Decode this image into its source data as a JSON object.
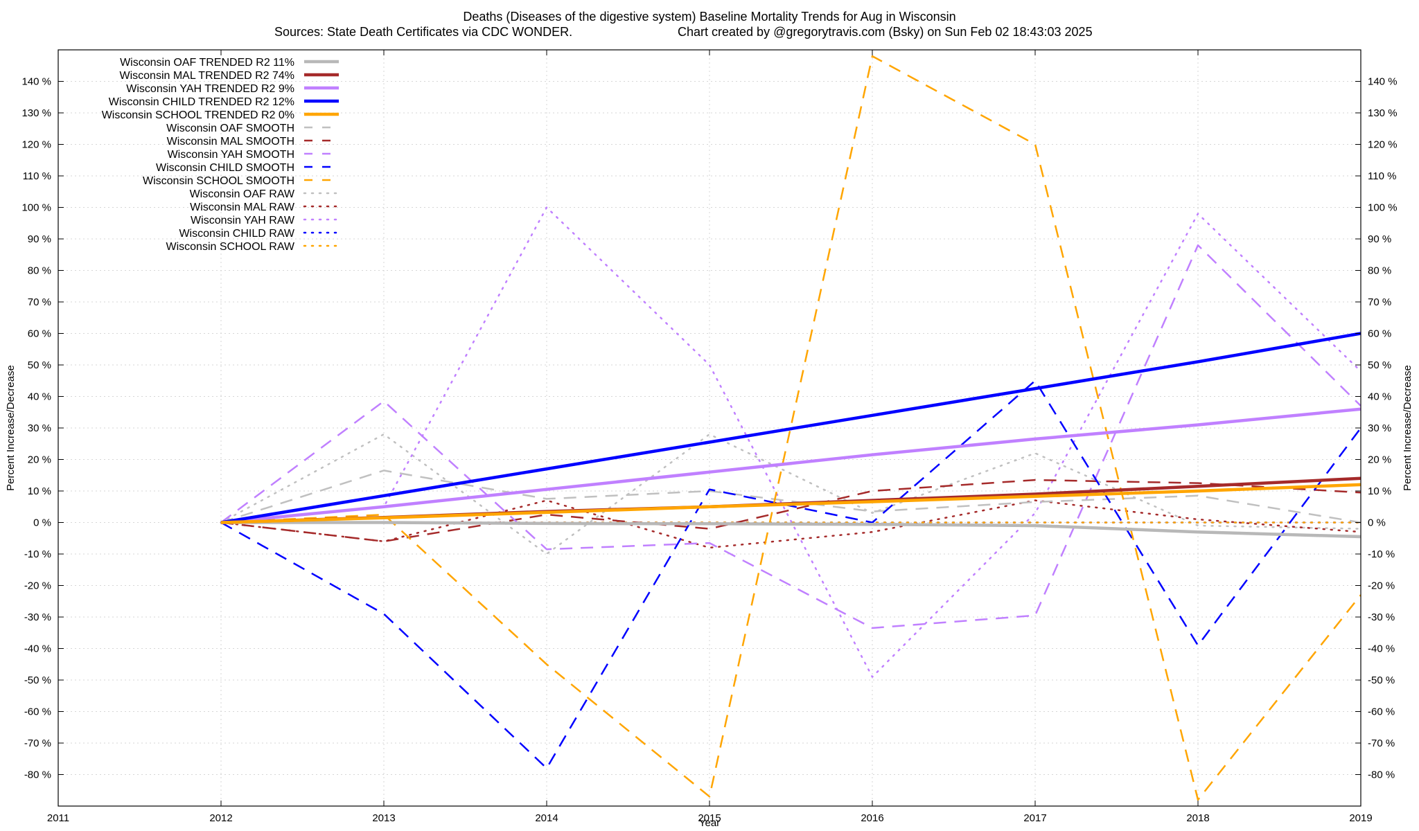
{
  "chart_data": {
    "type": "line",
    "title": "Deaths (Diseases of the digestive system)  Baseline Mortality Trends for Aug in Wisconsin",
    "subtitle_left": "Sources: State Death Certificates via CDC WONDER.",
    "subtitle_right": "Chart created by @gregorytravis.com (Bsky) on Sun Feb 02 18:43:03 2025",
    "xlabel": "Year",
    "ylabel": "Percent Increase/Decrease",
    "xlim": [
      2011,
      2019
    ],
    "ylim": [
      -90,
      150
    ],
    "x_ticks": [
      "2011",
      "2012",
      "2013",
      "2014",
      "2015",
      "2016",
      "2017",
      "2018",
      "2019"
    ],
    "y_ticks": [
      "140 %",
      "130 %",
      "120 %",
      "110 %",
      "100 %",
      "90 %",
      "80 %",
      "70 %",
      "60 %",
      "50 %",
      "40 %",
      "30 %",
      "20 %",
      "10 %",
      "0 %",
      "-10 %",
      "-20 %",
      "-30 %",
      "-40 %",
      "-50 %",
      "-60 %",
      "-70 %",
      "-80 %"
    ],
    "y_tick_values": [
      140,
      130,
      120,
      110,
      100,
      90,
      80,
      70,
      60,
      50,
      40,
      30,
      20,
      10,
      0,
      -10,
      -20,
      -30,
      -40,
      -50,
      -60,
      -70,
      -80
    ],
    "grid": true,
    "legend_position": "top-left",
    "x": [
      2012,
      2013,
      2014,
      2015,
      2016,
      2017,
      2018,
      2019
    ],
    "series": [
      {
        "name": "Wisconsin OAF TRENDED R2  11%",
        "style": "solid",
        "color": "#b8b8b8",
        "width": 4.5,
        "values": [
          0,
          0,
          -0.3,
          -0.4,
          -0.6,
          -1,
          -3,
          -4.5
        ]
      },
      {
        "name": "Wisconsin MAL TRENDED R2  74%",
        "style": "solid",
        "color": "#a52a2a",
        "width": 4.5,
        "values": [
          0,
          1.6,
          3.5,
          5,
          7,
          9,
          11.5,
          14
        ]
      },
      {
        "name": "Wisconsin YAH TRENDED R2  9%",
        "style": "solid",
        "color": "#c080ff",
        "width": 4.5,
        "values": [
          0,
          5,
          10.5,
          16,
          21.5,
          26.5,
          31,
          36
        ]
      },
      {
        "name": "Wisconsin CHILD TRENDED R2  12%",
        "style": "solid",
        "color": "#0000ff",
        "width": 4.5,
        "values": [
          0,
          8.5,
          17,
          25.5,
          34,
          42.5,
          51,
          60
        ]
      },
      {
        "name": "Wisconsin SCHOOL TRENDED R2  0%",
        "style": "solid",
        "color": "#ffa500",
        "width": 4.5,
        "values": [
          0,
          1.5,
          3.2,
          5,
          6.6,
          8.3,
          10,
          12
        ]
      },
      {
        "name": "Wisconsin OAF SMOOTH",
        "style": "dashed",
        "color": "#c0c0c0",
        "width": 2.5,
        "values": [
          0,
          16.5,
          7.5,
          10,
          3.5,
          6.5,
          8.5,
          0
        ]
      },
      {
        "name": "Wisconsin MAL SMOOTH",
        "style": "dashed",
        "color": "#a52a2a",
        "width": 2.5,
        "values": [
          0,
          -6,
          2.5,
          -2,
          10,
          13.5,
          12.5,
          9.5
        ]
      },
      {
        "name": "Wisconsin YAH SMOOTH",
        "style": "dashed",
        "color": "#c080ff",
        "width": 2.5,
        "values": [
          0,
          38.5,
          -8.5,
          -6.5,
          -33.5,
          -29.5,
          88,
          37
        ]
      },
      {
        "name": "Wisconsin CHILD SMOOTH",
        "style": "dashed",
        "color": "#0000ff",
        "width": 2.5,
        "values": [
          0,
          -29,
          -78,
          10.5,
          0,
          45,
          -39,
          30
        ]
      },
      {
        "name": "Wisconsin SCHOOL SMOOTH",
        "style": "dashed",
        "color": "#ffa500",
        "width": 2.5,
        "values": [
          0,
          2.5,
          -45,
          -87,
          148,
          120,
          -88,
          -23
        ]
      },
      {
        "name": "Wisconsin OAF RAW",
        "style": "dotted",
        "color": "#c0c0c0",
        "width": 2.5,
        "values": [
          0,
          28,
          -10,
          28,
          3,
          22,
          -1,
          -2
        ]
      },
      {
        "name": "Wisconsin MAL RAW",
        "style": "dotted",
        "color": "#a52a2a",
        "width": 2.5,
        "values": [
          0,
          -6,
          7,
          -8,
          -3,
          7,
          1,
          -3
        ]
      },
      {
        "name": "Wisconsin YAH RAW",
        "style": "dotted",
        "color": "#c080ff",
        "width": 2.5,
        "values": [
          0,
          5,
          100,
          50,
          -49,
          3,
          98,
          48
        ]
      },
      {
        "name": "Wisconsin CHILD RAW",
        "style": "dotted",
        "color": "#0000ff",
        "width": 2.5,
        "values": [
          0,
          0,
          0,
          0,
          0,
          0,
          0,
          0
        ]
      },
      {
        "name": "Wisconsin SCHOOL RAW",
        "style": "dotted",
        "color": "#ffa500",
        "width": 2.5,
        "values": [
          0,
          0,
          0,
          0,
          0,
          0,
          0,
          0
        ]
      }
    ]
  }
}
